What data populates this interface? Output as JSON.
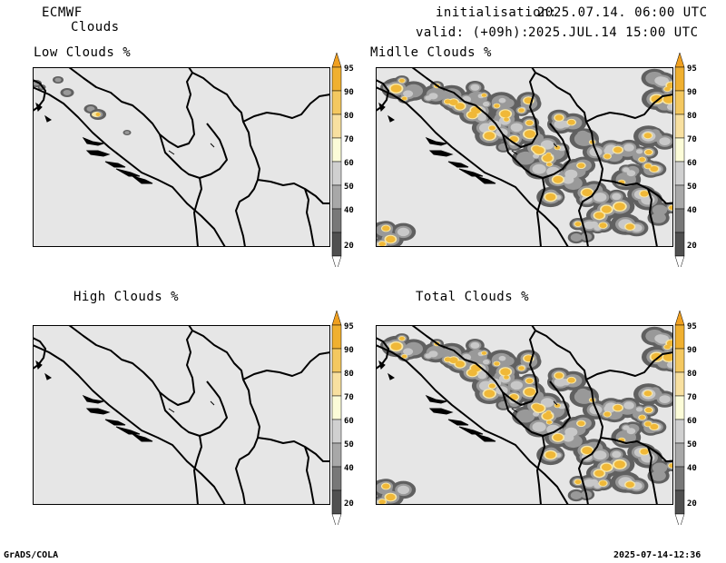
{
  "header": {
    "model": "ECMWF",
    "product": "Clouds",
    "init_label": "initialisation:",
    "init_value": "2025.07.14. 06:00 UTC",
    "valid_label": "valid: (+09h):",
    "valid_value": "2025.JUL.14 15:00 UTC"
  },
  "panels": [
    {
      "id": "low",
      "title": "Low Clouds %"
    },
    {
      "id": "middle",
      "title": "Midlle Clouds %"
    },
    {
      "id": "high",
      "title": "High Clouds %"
    },
    {
      "id": "total",
      "title": "Total Clouds %"
    }
  ],
  "colorbar": {
    "levels": [
      "95",
      "90",
      "80",
      "70",
      "60",
      "50",
      "40",
      "20"
    ],
    "colors": [
      "#f0b030",
      "#f4c860",
      "#f8e0a0",
      "#fcfcd8",
      "#d0d0d0",
      "#a8a8a8",
      "#787878",
      "#505050"
    ],
    "top_color": "#f0a020",
    "bottom_color": "#ffffff"
  },
  "footer": {
    "left": "GrADS/COLA",
    "right": "2025-07-14-12:36"
  },
  "colors": {
    "land": "#e6e6e6",
    "cloud_dark": "#606060",
    "cloud_mid": "#999999",
    "cloud_light": "#c8c8c8",
    "cloud_pale": "#f8e8a8",
    "cloud_yellow": "#f0b838"
  }
}
